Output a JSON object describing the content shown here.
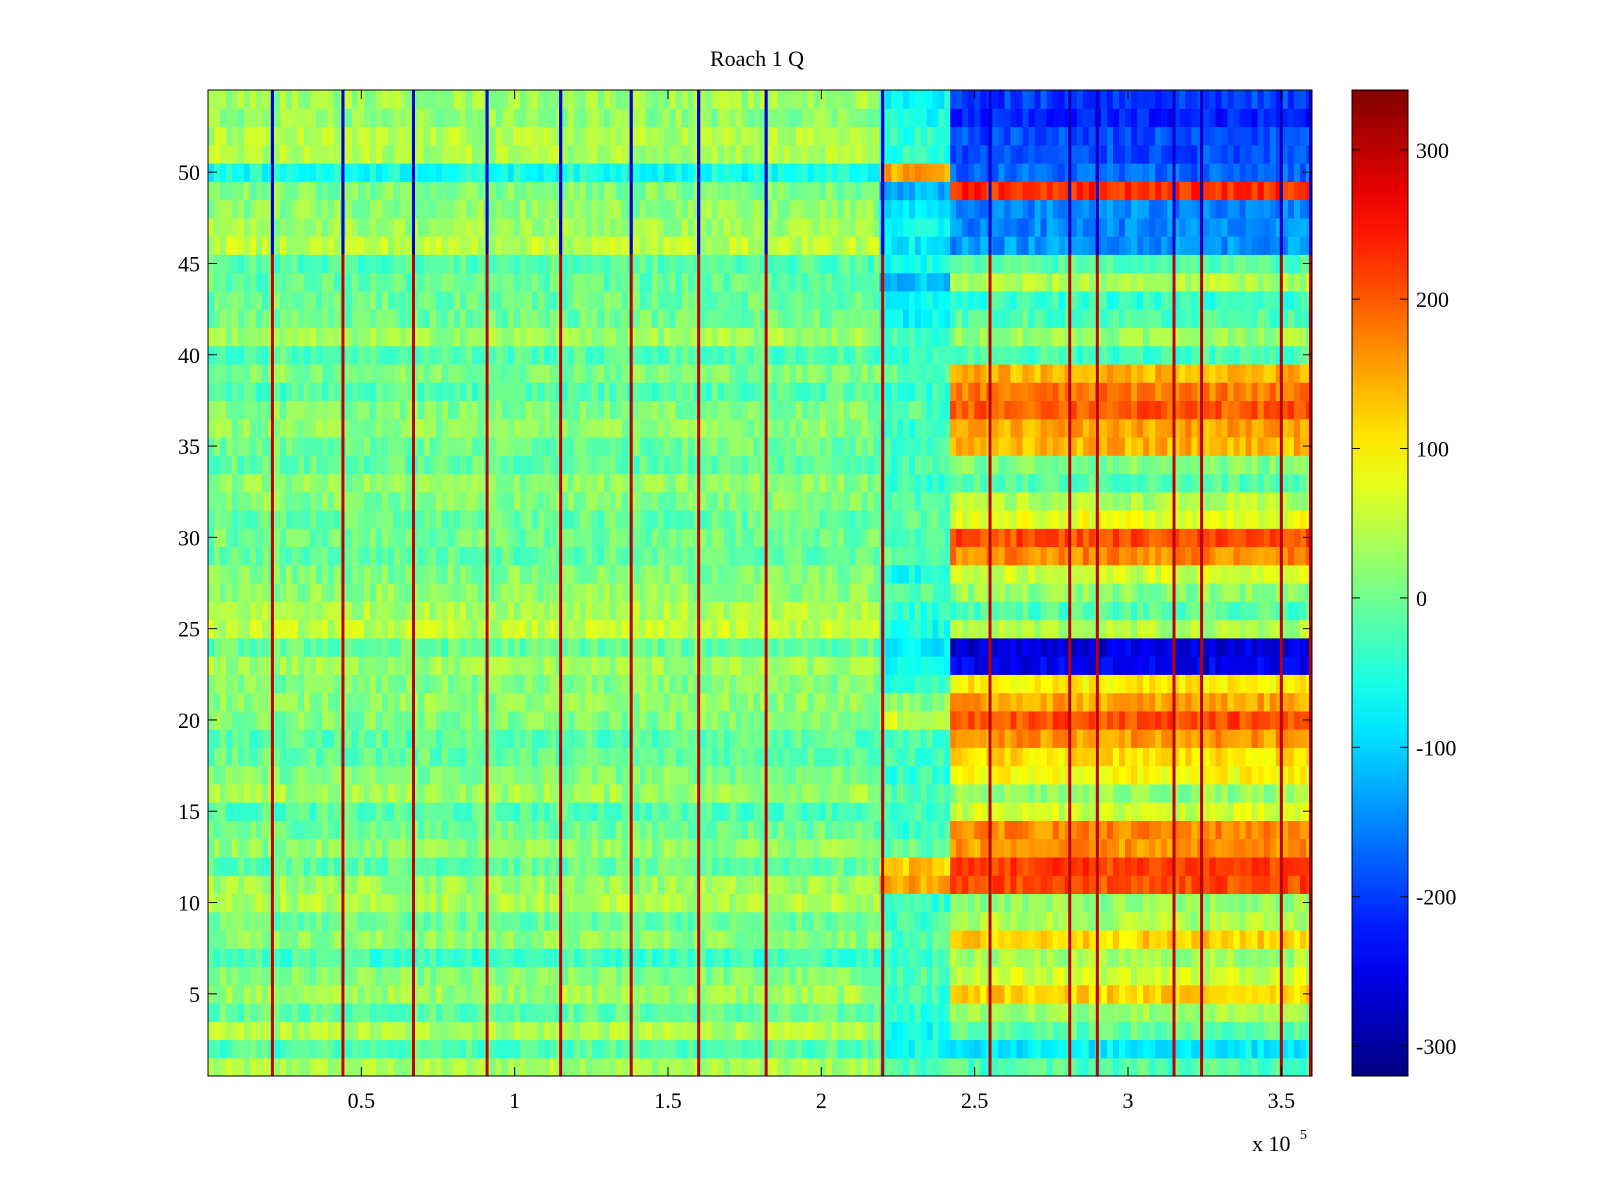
{
  "chart_data": {
    "type": "heatmap",
    "title": "Roach 1 Q",
    "xlabel": "",
    "ylabel": "",
    "xlim": [
      0,
      360000
    ],
    "ylim": [
      0.5,
      54.5
    ],
    "x_multiplier_label": "x 10",
    "x_multiplier_exponent": "5",
    "x_ticks": [
      {
        "value": 50000,
        "label": "0.5"
      },
      {
        "value": 100000,
        "label": "1"
      },
      {
        "value": 150000,
        "label": "1.5"
      },
      {
        "value": 200000,
        "label": "2"
      },
      {
        "value": 250000,
        "label": "2.5"
      },
      {
        "value": 300000,
        "label": "3"
      },
      {
        "value": 350000,
        "label": "3.5"
      }
    ],
    "y_ticks": [
      {
        "value": 5,
        "label": "5"
      },
      {
        "value": 10,
        "label": "10"
      },
      {
        "value": 15,
        "label": "15"
      },
      {
        "value": 20,
        "label": "20"
      },
      {
        "value": 25,
        "label": "25"
      },
      {
        "value": 30,
        "label": "30"
      },
      {
        "value": 35,
        "label": "35"
      },
      {
        "value": 40,
        "label": "40"
      },
      {
        "value": 45,
        "label": "45"
      },
      {
        "value": 50,
        "label": "50"
      }
    ],
    "n_rows": 54,
    "colorbar": {
      "colormap": "jet",
      "clim": [
        -320,
        340
      ],
      "ticks": [
        {
          "value": 300,
          "label": "300"
        },
        {
          "value": 200,
          "label": "200"
        },
        {
          "value": 100,
          "label": "100"
        },
        {
          "value": 0,
          "label": "0"
        },
        {
          "value": -100,
          "label": "-100"
        },
        {
          "value": -200,
          "label": "-200"
        },
        {
          "value": -300,
          "label": "-300"
        }
      ]
    },
    "segments": [
      {
        "x_range": [
          0,
          219000
        ],
        "row_mean": 20
      },
      {
        "x_range": [
          219000,
          242000
        ],
        "row_mean": -40
      },
      {
        "x_range": [
          242000,
          360000
        ],
        "row_mean": 100
      }
    ],
    "row_values_segment_1": [
      35,
      -20,
      40,
      -10,
      30,
      10,
      -30,
      20,
      -5,
      40,
      30,
      -10,
      20,
      0,
      -20,
      30,
      10,
      -10,
      -15,
      10,
      20,
      10,
      30,
      -10,
      50,
      40,
      20,
      10,
      -10,
      0,
      -10,
      10,
      20,
      -10,
      0,
      20,
      10,
      -20,
      10,
      -20,
      30,
      0,
      -5,
      -10,
      -20,
      50,
      30,
      20,
      10,
      -60,
      40,
      40,
      20,
      30
    ],
    "row_values_segment_2": [
      -20,
      -60,
      -60,
      -40,
      -30,
      -20,
      -40,
      -20,
      -30,
      -40,
      150,
      130,
      -10,
      -40,
      -30,
      -20,
      -40,
      -30,
      -30,
      60,
      20,
      -40,
      -60,
      -90,
      -60,
      -40,
      -20,
      -60,
      -20,
      -30,
      -10,
      -20,
      -40,
      -30,
      -20,
      -40,
      -20,
      -40,
      -10,
      -40,
      -30,
      -70,
      -60,
      -110,
      -60,
      -80,
      -70,
      -80,
      -120,
      150,
      -40,
      -40,
      -60,
      -70
    ],
    "row_values_segment_3": [
      -20,
      -80,
      -10,
      30,
      120,
      60,
      30,
      120,
      40,
      20,
      210,
      220,
      160,
      170,
      60,
      20,
      90,
      110,
      160,
      210,
      150,
      100,
      -250,
      -260,
      40,
      -20,
      20,
      60,
      170,
      210,
      80,
      40,
      -20,
      10,
      140,
      150,
      200,
      180,
      140,
      -30,
      30,
      -20,
      -40,
      40,
      -20,
      -140,
      -150,
      -150,
      230,
      -170,
      -190,
      -190,
      -220,
      -200
    ],
    "vertical_line_x": [
      21000,
      44000,
      67000,
      91000,
      115000,
      138000,
      160000,
      182000,
      220000,
      255000,
      281000,
      290000,
      315000,
      324000,
      350000,
      359500
    ]
  }
}
